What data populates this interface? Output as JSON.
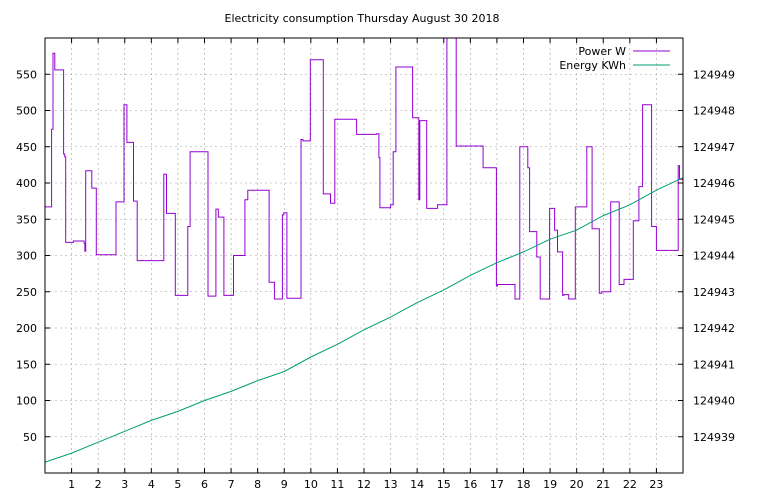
{
  "chart_data": {
    "type": "line",
    "title": "Electricity consumption Thursday August 30 2018",
    "xlabel": "",
    "ylabel": "",
    "y2label": "",
    "xlim": [
      0,
      24
    ],
    "ylim": [
      0,
      600
    ],
    "y2lim": [
      124938,
      124950
    ],
    "x_ticks": [
      1,
      2,
      3,
      4,
      5,
      6,
      7,
      8,
      9,
      10,
      11,
      12,
      13,
      14,
      15,
      16,
      17,
      18,
      19,
      20,
      21,
      22,
      23
    ],
    "y_ticks": [
      50,
      100,
      150,
      200,
      250,
      300,
      350,
      400,
      450,
      500,
      550
    ],
    "y2_ticks": [
      124939,
      124940,
      124941,
      124942,
      124943,
      124944,
      124945,
      124946,
      124947,
      124948,
      124949
    ],
    "grid": true,
    "legend_position": "top-right",
    "series": [
      {
        "name": "Power W",
        "axis": "left",
        "color": "#9400d3",
        "step": true,
        "x": [
          0,
          0.25,
          0.3,
          0.37,
          0.7,
          0.74,
          0.78,
          1.07,
          1.47,
          1.5,
          1.53,
          1.76,
          1.9,
          1.93,
          2.47,
          2.67,
          2.97,
          3.03,
          3.08,
          3.33,
          3.47,
          4.47,
          4.57,
          4.9,
          5.02,
          5.37,
          5.46,
          6.13,
          6.19,
          6.43,
          6.52,
          6.73,
          7.09,
          7.52,
          7.63,
          8.43,
          8.63,
          8.93,
          8.98,
          9.1,
          9.63,
          9.7,
          9.98,
          10.47,
          10.74,
          10.9,
          11.72,
          12.47,
          12.56,
          12.6,
          13.0,
          13.1,
          13.2,
          13.83,
          14.06,
          14.1,
          14.36,
          14.77,
          15.12,
          15.47,
          15.78,
          16.48,
          16.98,
          17.02,
          17.68,
          17.86,
          18.0,
          18.16,
          18.23,
          18.5,
          18.63,
          18.98,
          19.17,
          19.28,
          19.47,
          19.52,
          19.7,
          19.95,
          20.38,
          20.58,
          20.85,
          20.94,
          21.28,
          21.6,
          21.78,
          22.13,
          22.34,
          22.48,
          22.82,
          23.0,
          23.3,
          23.6,
          23.82,
          23.87
        ],
        "y": [
          367,
          474,
          579,
          556,
          440,
          436,
          318,
          320,
          317,
          306,
          417,
          393,
          393,
          301,
          301,
          374,
          508,
          508,
          456,
          375,
          293,
          412,
          358,
          245,
          245,
          340,
          443,
          244,
          244,
          364,
          353,
          245,
          300,
          377,
          390,
          263,
          240,
          356,
          359,
          241,
          460,
          458,
          570,
          385,
          372,
          488,
          467,
          468,
          435,
          366,
          370,
          443,
          560,
          490,
          377,
          486,
          365,
          370,
          600,
          451,
          451,
          421,
          258,
          260,
          240,
          450,
          450,
          421,
          333,
          298,
          240,
          365,
          335,
          305,
          245,
          246,
          240,
          367,
          450,
          337,
          248,
          250,
          374,
          260,
          267,
          348,
          395,
          508,
          340,
          307,
          307,
          307,
          424,
          405
        ]
      },
      {
        "name": "Energy KWh",
        "axis": "right",
        "color": "#009e73",
        "step": false,
        "x": [
          0,
          1,
          2,
          3,
          4,
          5,
          6,
          7,
          8,
          9,
          10,
          11,
          12,
          13,
          14,
          15,
          16,
          17,
          18,
          19,
          20,
          21,
          22,
          23,
          24
        ],
        "y": [
          124938.3,
          124938.55,
          124938.85,
          124939.15,
          124939.45,
          124939.7,
          124940.0,
          124940.25,
          124940.55,
          124940.8,
          124941.2,
          124941.55,
          124941.95,
          124942.3,
          124942.7,
          124943.05,
          124943.45,
          124943.8,
          124944.1,
          124944.45,
          124944.7,
          124945.1,
          124945.4,
          124945.8,
          124946.15
        ]
      }
    ]
  }
}
